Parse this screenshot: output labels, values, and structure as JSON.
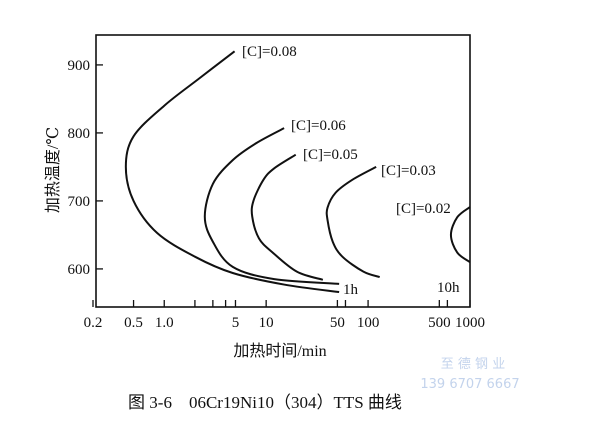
{
  "chart_data": {
    "type": "line",
    "title": "图 3-6　06Cr19Ni10（304）TTS 曲线",
    "xlabel": "加热时间/min",
    "ylabel": "加热温度/℃",
    "xscale": "log",
    "xlim": [
      0.2,
      1000
    ],
    "ylim": [
      544,
      944
    ],
    "xticks": [
      {
        "v": 0.2,
        "label": "0.2"
      },
      {
        "v": 0.5,
        "label": "0.5"
      },
      {
        "v": 1,
        "label": "1.0"
      },
      {
        "v": 2,
        "label": ""
      },
      {
        "v": 3,
        "label": ""
      },
      {
        "v": 4,
        "label": ""
      },
      {
        "v": 5,
        "label": "5"
      },
      {
        "v": 10,
        "label": "10"
      },
      {
        "v": 50,
        "label": "50"
      },
      {
        "v": 60,
        "label": ""
      },
      {
        "v": 100,
        "label": "100"
      },
      {
        "v": 500,
        "label": "500"
      },
      {
        "v": 600,
        "label": ""
      },
      {
        "v": 1000,
        "label": "1000"
      }
    ],
    "yticks": [
      600,
      700,
      800,
      900
    ],
    "series": [
      {
        "name": "[C]=0.08",
        "points": [
          [
            4.9,
            920
          ],
          [
            2.2,
            880
          ],
          [
            1.0,
            840
          ],
          [
            0.5,
            795
          ],
          [
            0.42,
            750
          ],
          [
            0.5,
            700
          ],
          [
            0.85,
            653
          ],
          [
            2,
            618
          ],
          [
            4.7,
            594
          ],
          [
            15,
            577
          ],
          [
            52,
            566
          ]
        ]
      },
      {
        "name": "[C]=0.06",
        "points": [
          [
            15,
            807
          ],
          [
            8,
            785
          ],
          [
            4.7,
            760
          ],
          [
            3,
            725
          ],
          [
            2.5,
            677
          ],
          [
            3,
            640
          ],
          [
            4.7,
            603
          ],
          [
            12,
            585
          ],
          [
            52,
            578
          ]
        ]
      },
      {
        "name": "[C]=0.05",
        "points": [
          [
            19.5,
            768
          ],
          [
            12,
            748
          ],
          [
            9.4,
            731
          ],
          [
            7.5,
            700
          ],
          [
            7.3,
            677
          ],
          [
            8.5,
            645
          ],
          [
            11.6,
            624
          ],
          [
            20,
            596
          ],
          [
            36,
            584
          ]
        ]
      },
      {
        "name": "[C]=0.03",
        "points": [
          [
            120,
            750
          ],
          [
            70,
            731
          ],
          [
            48,
            712
          ],
          [
            40,
            690
          ],
          [
            40,
            672
          ],
          [
            45,
            640
          ],
          [
            56,
            618
          ],
          [
            90,
            596
          ],
          [
            130,
            588
          ]
        ]
      },
      {
        "name": "[C]=0.02",
        "points": [
          [
            1000,
            691
          ],
          [
            750,
            676
          ],
          [
            650,
            650
          ],
          [
            750,
            624
          ],
          [
            1000,
            610
          ]
        ]
      }
    ],
    "annotations": [
      "1h",
      "10h"
    ]
  },
  "watermark": {
    "line1": "至 德 钢 业",
    "line2": "139 6707 6667"
  }
}
